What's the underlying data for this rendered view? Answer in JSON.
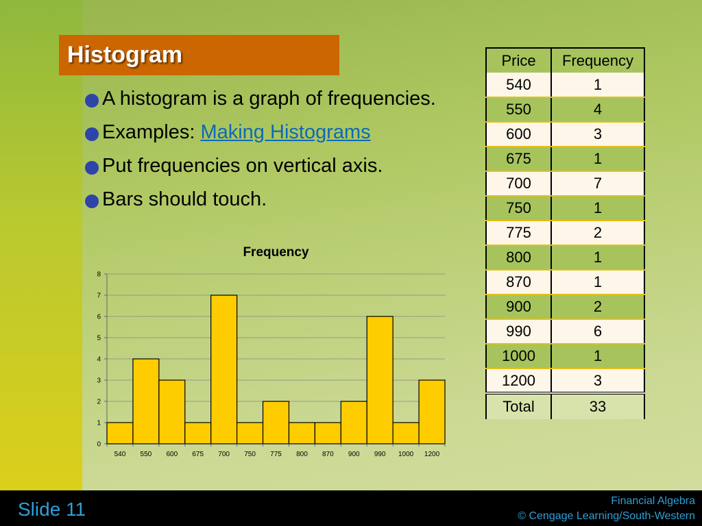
{
  "slide": {
    "title": "Histogram",
    "bullets": [
      {
        "text": "A histogram is a graph of frequencies."
      },
      {
        "text": "Examples: ",
        "link": "Making Histograms"
      },
      {
        "text": "Put frequencies on vertical axis."
      },
      {
        "text": "Bars should touch."
      }
    ]
  },
  "table": {
    "headers": [
      "Price",
      "Frequency"
    ],
    "rows": [
      [
        "540",
        "1"
      ],
      [
        "550",
        "4"
      ],
      [
        "600",
        "3"
      ],
      [
        "675",
        "1"
      ],
      [
        "700",
        "7"
      ],
      [
        "750",
        "1"
      ],
      [
        "775",
        "2"
      ],
      [
        "800",
        "1"
      ],
      [
        "870",
        "1"
      ],
      [
        "900",
        "2"
      ],
      [
        "990",
        "6"
      ],
      [
        "1000",
        "1"
      ],
      [
        "1200",
        "3"
      ]
    ],
    "total": [
      "Total",
      "33"
    ]
  },
  "chart_data": {
    "type": "bar",
    "title": "Frequency",
    "categories": [
      "540",
      "550",
      "600",
      "675",
      "700",
      "750",
      "775",
      "800",
      "870",
      "900",
      "990",
      "1000",
      "1200"
    ],
    "values": [
      1,
      4,
      3,
      1,
      7,
      1,
      2,
      1,
      1,
      2,
      6,
      1,
      3
    ],
    "ylim": [
      0,
      8
    ],
    "yticks": [
      0,
      1,
      2,
      3,
      4,
      5,
      6,
      7,
      8
    ],
    "grid": true,
    "bar_color": "#ffcc00",
    "bar_edge_color": "#000000"
  },
  "footer": {
    "slide_label": "Slide 11",
    "line1": "Financial Algebra",
    "line2": "© Cengage Learning/South-Western"
  },
  "colors": {
    "title_bg": "#cc6600",
    "bullet": "#2e44a8",
    "link": "#0b6ab8",
    "footer_text": "#2f9fd8"
  }
}
